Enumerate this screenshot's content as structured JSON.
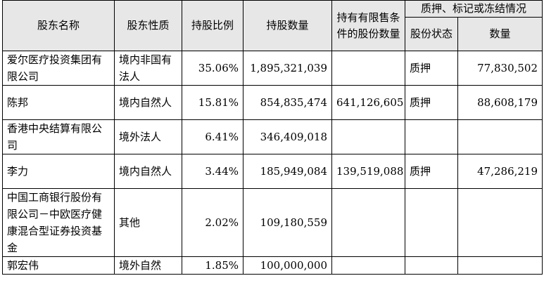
{
  "headers": {
    "name": "股东名称",
    "nature": "股东性质",
    "ratio": "持股比例",
    "quantity": "持股数量",
    "restricted": "持有有限售条件的股份数量",
    "pledge_group": "质押、标记或冻结情况",
    "pledge_status": "股份状态",
    "pledge_quantity": "数量"
  },
  "rows": [
    {
      "name": "爱尔医疗投资集团有限公司",
      "nature": "境内非国有法人",
      "ratio": "35.06%",
      "quantity": "1,895,321,039",
      "restricted": "",
      "pledge_status": "质押",
      "pledge_quantity": "77,830,502"
    },
    {
      "name": "陈邦",
      "nature": "境内自然人",
      "ratio": "15.81%",
      "quantity": "854,835,474",
      "restricted": "641,126,605",
      "pledge_status": "质押",
      "pledge_quantity": "88,608,179"
    },
    {
      "name": "香港中央结算有限公司",
      "nature": "境外法人",
      "ratio": "6.41%",
      "quantity": "346,409,018",
      "restricted": "",
      "pledge_status": "",
      "pledge_quantity": ""
    },
    {
      "name": "李力",
      "nature": "境内自然人",
      "ratio": "3.44%",
      "quantity": "185,949,084",
      "restricted": "139,519,088",
      "pledge_status": "质押",
      "pledge_quantity": "47,286,219"
    },
    {
      "name": "中国工商银行股份有限公司－中欧医疗健康混合型证券投资基金",
      "nature": "其他",
      "ratio": "2.02%",
      "quantity": "109,180,559",
      "restricted": "",
      "pledge_status": "",
      "pledge_quantity": ""
    },
    {
      "name": "郭宏伟",
      "nature": "境外自然",
      "ratio": "1.85%",
      "quantity": "100,000,000",
      "restricted": "",
      "pledge_status": "",
      "pledge_quantity": ""
    }
  ]
}
